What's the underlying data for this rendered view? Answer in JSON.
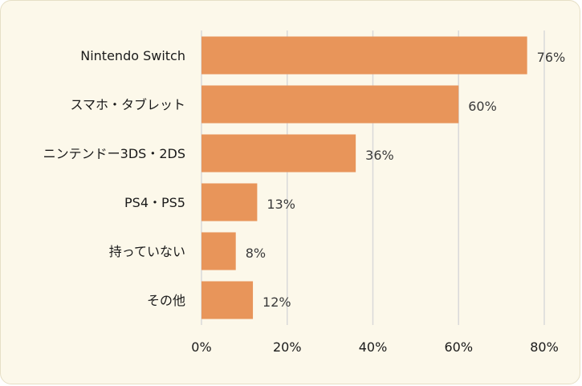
{
  "chart_data": {
    "type": "bar",
    "orientation": "horizontal",
    "categories": [
      "Nintendo Switch",
      "スマホ・タブレット",
      "ニンテンドー3DS・2DS",
      "PS4・PS5",
      "持っていない",
      "その他"
    ],
    "values": [
      76,
      60,
      36,
      13,
      8,
      12
    ],
    "value_labels": [
      "76%",
      "60%",
      "36%",
      "13%",
      "8%",
      "12%"
    ],
    "xlim": [
      0,
      80
    ],
    "x_ticks": [
      0,
      20,
      40,
      60,
      80
    ],
    "x_tick_labels": [
      "0%",
      "20%",
      "40%",
      "60%",
      "80%"
    ],
    "grid": "vertical",
    "bar_color": "#e8955a",
    "background_color": "#fcf8ea",
    "grid_color": "#d9d9d9"
  }
}
